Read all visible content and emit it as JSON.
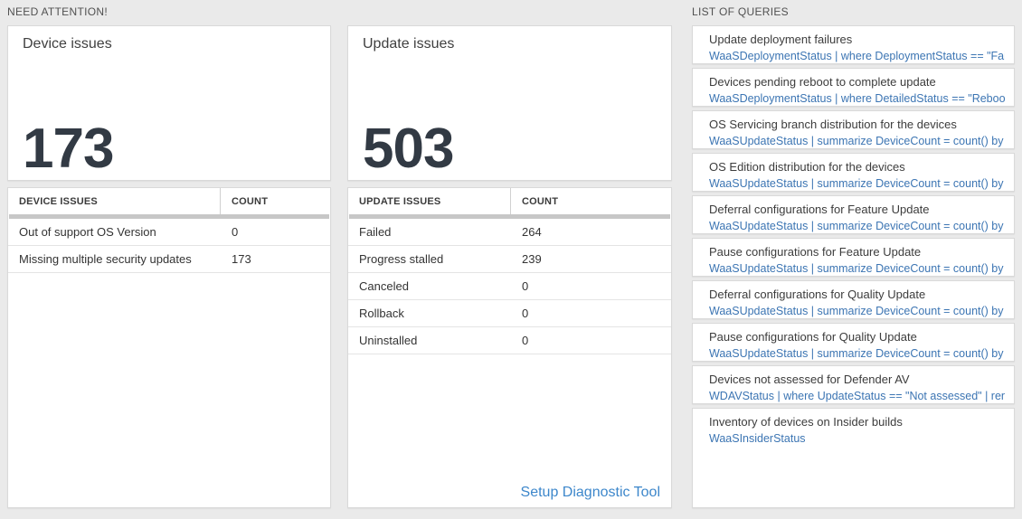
{
  "section_headers": {
    "need_attention": "NEED ATTENTION!",
    "list_of_queries": "LIST OF QUERIES"
  },
  "device_issues": {
    "tile": {
      "title": "Device issues",
      "count": "173"
    },
    "table": {
      "header_label": "DEVICE ISSUES",
      "header_count": "COUNT",
      "rows": [
        {
          "label": "Out of support OS Version",
          "count": "0"
        },
        {
          "label": "Missing multiple security updates",
          "count": "173"
        }
      ]
    }
  },
  "update_issues": {
    "tile": {
      "title": "Update issues",
      "count": "503"
    },
    "table": {
      "header_label": "UPDATE ISSUES",
      "header_count": "COUNT",
      "rows": [
        {
          "label": "Failed",
          "count": "264"
        },
        {
          "label": "Progress stalled",
          "count": "239"
        },
        {
          "label": "Canceled",
          "count": "0"
        },
        {
          "label": "Rollback",
          "count": "0"
        },
        {
          "label": "Uninstalled",
          "count": "0"
        }
      ]
    },
    "footer_link": "Setup Diagnostic Tool"
  },
  "queries": [
    {
      "title": "Update deployment failures",
      "query": "WaaSDeploymentStatus | where DeploymentStatus == \"Failed\" |..."
    },
    {
      "title": "Devices pending reboot to complete update",
      "query": "WaaSDeploymentStatus | where DetailedStatus == \"Reboot pend..."
    },
    {
      "title": "OS Servicing branch distribution for the devices",
      "query": "WaaSUpdateStatus | summarize DeviceCount = count() by OSSer..."
    },
    {
      "title": "OS Edition distribution for the devices",
      "query": "WaaSUpdateStatus | summarize DeviceCount = count() by OSEdit..."
    },
    {
      "title": "Deferral configurations for Feature Update",
      "query": "WaaSUpdateStatus | summarize DeviceCount = count() by Featur..."
    },
    {
      "title": "Pause configurations for Feature Update",
      "query": "WaaSUpdateStatus | summarize DeviceCount = count() by Featur..."
    },
    {
      "title": "Deferral configurations for Quality Update",
      "query": "WaaSUpdateStatus | summarize DeviceCount = count() by Qualit..."
    },
    {
      "title": "Pause configurations for Quality Update",
      "query": "WaaSUpdateStatus | summarize DeviceCount = count() by Qualit..."
    },
    {
      "title": "Devices not assessed for Defender AV",
      "query": "WDAVStatus | where UpdateStatus == \"Not assessed\" | render ta..."
    },
    {
      "title": "Inventory of devices on Insider builds",
      "query": "WaaSInsiderStatus"
    }
  ],
  "colors": {
    "page_background": "#eaeaea",
    "query_link_blue": "#3c75b3",
    "action_link_blue": "#3d87cb",
    "big_number_color": "#323a44",
    "header_bar_gray": "#c7c7c7"
  }
}
